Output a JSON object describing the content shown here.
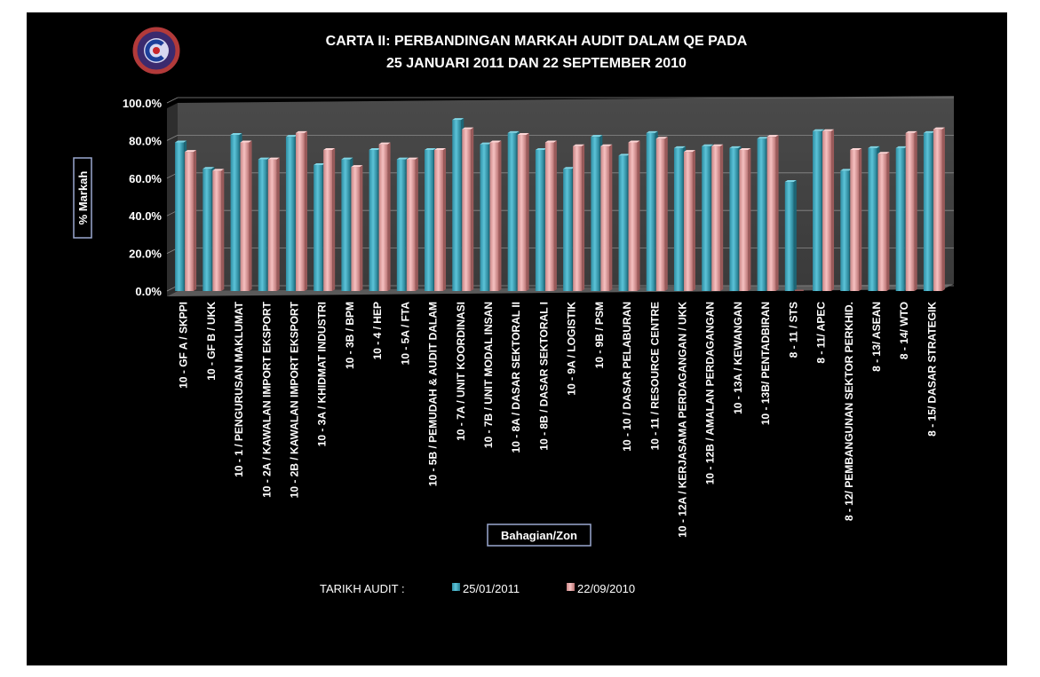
{
  "chart_data": {
    "type": "bar",
    "title_lines": [
      "CARTA II:  PERBANDINGAN MARKAH AUDIT DALAM QE PADA",
      "25 JANUARI 2011 DAN  22 SEPTEMBER 2010"
    ],
    "ylabel": "% Markah",
    "xlabel": "Bahagian/Zon",
    "ylim": [
      0,
      100
    ],
    "yticks": [
      "0.0%",
      "20.0%",
      "40.0%",
      "60.0%",
      "80.0%",
      "100.0%"
    ],
    "grid": true,
    "legend": {
      "position": "bottom",
      "prefix": "TARIKH  AUDIT :"
    },
    "categories": [
      "10 - GF A / SKPPI",
      "10 - GF B / UKK",
      "10 - 1 / PENGURUSAN MAKLUMAT",
      "10 - 2A / KAWALAN IMPORT EKSPORT",
      "10 - 2B / KAWALAN IMPORT EKSPORT",
      "10 - 3A / KHIDMAT INDUSTRI",
      "10 - 3B / BPM",
      "10 - 4 / HEP",
      "10 - 5A / FTA",
      "10 - 5B / PEMUDAH & AUDIT DALAM",
      "10 - 7A / UNIT KOORDINASI",
      "10 - 7B / UNIT MODAL INSAN",
      "10 - 8A / DASAR SEKTORAL II",
      "10 - 8B / DASAR SEKTORAL I",
      "10 - 9A / LOGISTIK",
      "10 - 9B / PSM",
      "10 - 10 / DASAR PELABURAN",
      "10 - 11 / RESOURCE CENTRE",
      "10 - 12A / KERJASAMA PERDAGANGAN / UKK",
      "10 - 12B / AMALAN PERDAGANGAN",
      "10 - 13A / KEWANGAN",
      "10 - 13B/ PENTADBIRAN",
      "8 - 11 / STS",
      "8 - 11/ APEC",
      "8 - 12/ PEMBANGUNAN SEKTOR PERKHID.",
      "8 - 13/ ASEAN",
      "8 - 14/ WTO",
      "8 - 15/ DASAR STRATEGIK"
    ],
    "series": [
      {
        "name": "25/01/2011",
        "color": "#3fa7bd",
        "values": [
          79,
          65,
          83,
          70,
          82,
          67,
          70,
          75,
          70,
          75,
          91,
          78,
          84,
          75,
          65,
          82,
          72,
          84,
          76,
          77,
          76,
          81,
          58,
          85,
          64,
          76,
          76,
          84
        ]
      },
      {
        "name": "22/09/2010",
        "color": "#e8a6a6",
        "values": [
          74,
          64,
          79,
          70,
          84,
          75,
          66,
          78,
          70,
          75,
          86,
          79,
          83,
          79,
          77,
          77,
          79,
          81,
          74,
          77,
          75,
          82,
          0,
          85,
          75,
          73,
          84,
          86
        ]
      }
    ]
  }
}
